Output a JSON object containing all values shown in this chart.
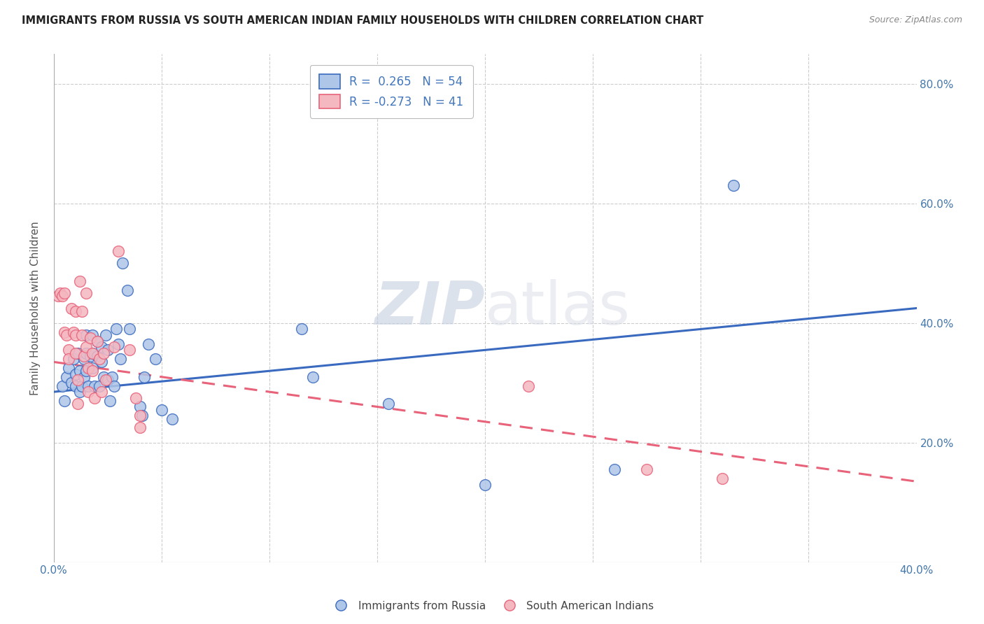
{
  "title": "IMMIGRANTS FROM RUSSIA VS SOUTH AMERICAN INDIAN FAMILY HOUSEHOLDS WITH CHILDREN CORRELATION CHART",
  "source": "Source: ZipAtlas.com",
  "ylabel": "Family Households with Children",
  "xlim": [
    0.0,
    0.4
  ],
  "ylim": [
    0.0,
    0.85
  ],
  "yticks": [
    0.0,
    0.2,
    0.4,
    0.6,
    0.8
  ],
  "ytick_labels": [
    "",
    "20.0%",
    "40.0%",
    "60.0%",
    "80.0%"
  ],
  "xticks": [
    0.0,
    0.05,
    0.1,
    0.15,
    0.2,
    0.25,
    0.3,
    0.35,
    0.4
  ],
  "xtick_labels": [
    "0.0%",
    "",
    "",
    "",
    "",
    "",
    "",
    "",
    "40.0%"
  ],
  "blue_r": 0.265,
  "blue_n": 54,
  "pink_r": -0.273,
  "pink_n": 41,
  "blue_color": "#aec6e8",
  "pink_color": "#f4b8c1",
  "trend_blue_color": "#3a6abf",
  "trend_pink_color": "#e8637a",
  "watermark_zip": "ZIP",
  "watermark_atlas": "atlas",
  "blue_trend_x": [
    0.0,
    0.4
  ],
  "blue_trend_y": [
    0.285,
    0.425
  ],
  "pink_trend_x": [
    0.0,
    0.4
  ],
  "pink_trend_y": [
    0.335,
    0.135
  ],
  "blue_scatter": [
    [
      0.004,
      0.295
    ],
    [
      0.005,
      0.27
    ],
    [
      0.006,
      0.31
    ],
    [
      0.007,
      0.325
    ],
    [
      0.008,
      0.3
    ],
    [
      0.009,
      0.34
    ],
    [
      0.01,
      0.315
    ],
    [
      0.01,
      0.295
    ],
    [
      0.011,
      0.35
    ],
    [
      0.012,
      0.32
    ],
    [
      0.012,
      0.285
    ],
    [
      0.013,
      0.295
    ],
    [
      0.014,
      0.34
    ],
    [
      0.014,
      0.31
    ],
    [
      0.015,
      0.38
    ],
    [
      0.015,
      0.35
    ],
    [
      0.015,
      0.32
    ],
    [
      0.016,
      0.295
    ],
    [
      0.017,
      0.345
    ],
    [
      0.018,
      0.38
    ],
    [
      0.018,
      0.35
    ],
    [
      0.018,
      0.325
    ],
    [
      0.019,
      0.295
    ],
    [
      0.02,
      0.37
    ],
    [
      0.02,
      0.345
    ],
    [
      0.021,
      0.295
    ],
    [
      0.022,
      0.36
    ],
    [
      0.022,
      0.335
    ],
    [
      0.023,
      0.31
    ],
    [
      0.024,
      0.38
    ],
    [
      0.025,
      0.355
    ],
    [
      0.025,
      0.305
    ],
    [
      0.026,
      0.27
    ],
    [
      0.027,
      0.31
    ],
    [
      0.028,
      0.295
    ],
    [
      0.029,
      0.39
    ],
    [
      0.03,
      0.365
    ],
    [
      0.031,
      0.34
    ],
    [
      0.032,
      0.5
    ],
    [
      0.034,
      0.455
    ],
    [
      0.035,
      0.39
    ],
    [
      0.04,
      0.26
    ],
    [
      0.041,
      0.245
    ],
    [
      0.042,
      0.31
    ],
    [
      0.044,
      0.365
    ],
    [
      0.047,
      0.34
    ],
    [
      0.05,
      0.255
    ],
    [
      0.055,
      0.24
    ],
    [
      0.115,
      0.39
    ],
    [
      0.12,
      0.31
    ],
    [
      0.155,
      0.265
    ],
    [
      0.2,
      0.13
    ],
    [
      0.26,
      0.155
    ],
    [
      0.315,
      0.63
    ]
  ],
  "pink_scatter": [
    [
      0.002,
      0.445
    ],
    [
      0.003,
      0.45
    ],
    [
      0.004,
      0.445
    ],
    [
      0.005,
      0.45
    ],
    [
      0.005,
      0.385
    ],
    [
      0.006,
      0.38
    ],
    [
      0.007,
      0.355
    ],
    [
      0.007,
      0.34
    ],
    [
      0.008,
      0.425
    ],
    [
      0.009,
      0.385
    ],
    [
      0.01,
      0.42
    ],
    [
      0.01,
      0.38
    ],
    [
      0.01,
      0.35
    ],
    [
      0.011,
      0.305
    ],
    [
      0.011,
      0.265
    ],
    [
      0.012,
      0.47
    ],
    [
      0.013,
      0.42
    ],
    [
      0.013,
      0.38
    ],
    [
      0.014,
      0.345
    ],
    [
      0.015,
      0.45
    ],
    [
      0.015,
      0.36
    ],
    [
      0.016,
      0.325
    ],
    [
      0.016,
      0.285
    ],
    [
      0.017,
      0.375
    ],
    [
      0.018,
      0.35
    ],
    [
      0.018,
      0.32
    ],
    [
      0.019,
      0.275
    ],
    [
      0.02,
      0.37
    ],
    [
      0.021,
      0.34
    ],
    [
      0.022,
      0.285
    ],
    [
      0.023,
      0.35
    ],
    [
      0.024,
      0.305
    ],
    [
      0.028,
      0.36
    ],
    [
      0.03,
      0.52
    ],
    [
      0.035,
      0.355
    ],
    [
      0.038,
      0.275
    ],
    [
      0.04,
      0.245
    ],
    [
      0.04,
      0.225
    ],
    [
      0.22,
      0.295
    ],
    [
      0.275,
      0.155
    ],
    [
      0.31,
      0.14
    ]
  ]
}
